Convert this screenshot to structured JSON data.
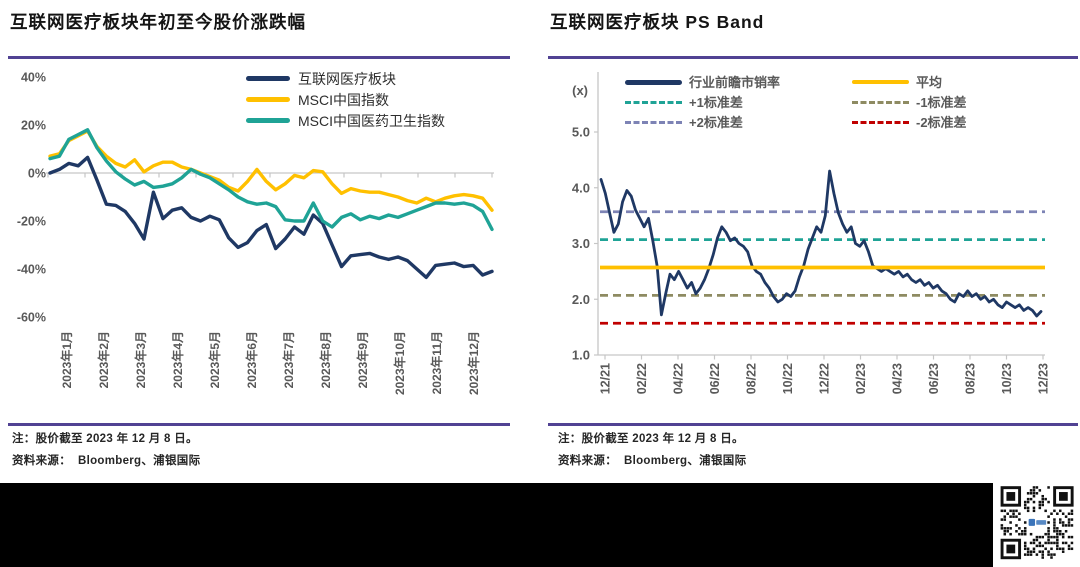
{
  "colors": {
    "navy": "#1F3864",
    "yellow": "#FFC000",
    "teal": "#1FA396",
    "slate": "#7D83B5",
    "olive": "#8E8B62",
    "red": "#C00000",
    "rule": "#514293",
    "axis": "#C6C6C6",
    "tick_label": "#595959",
    "qr_dark": "#111111",
    "qr_logo_blue": "#3B74BA"
  },
  "charts": [
    {
      "title": "互联网医疗板块年初至今股价涨跌幅",
      "note": "注：股价截至 2023 年 12 月 8 日。",
      "source": "资料来源：  Bloomberg、浦银国际",
      "chart_data": {
        "type": "line",
        "title": "互联网医疗板块年初至今股价涨跌幅",
        "unit": "%",
        "categories": [
          "2023年1月",
          "2023年2月",
          "2023年3月",
          "2023年4月",
          "2023年5月",
          "2023年6月",
          "2023年7月",
          "2023年8月",
          "2023年9月",
          "2023年10月",
          "2023年11月",
          "2023年12月"
        ],
        "ylim": [
          -60,
          40
        ],
        "yticks": [
          40,
          20,
          0,
          -20,
          -40,
          -60
        ],
        "ytick_labels": [
          "40%",
          "20%",
          "0%",
          "-20%",
          "-40%",
          "-60%"
        ],
        "grid": false,
        "legend_position": "top-right",
        "series": [
          {
            "name": "互联网医疗板块",
            "color_key": "navy",
            "values": [
              0,
              1.5,
              4,
              3,
              6.5,
              -3,
              -13,
              -13.5,
              -16,
              -21,
              -27.5,
              -8,
              -19,
              -15.5,
              -14.5,
              -18.5,
              -20,
              -18,
              -19.5,
              -27,
              -31,
              -29,
              -24,
              -21.5,
              -31.5,
              -27.5,
              -22.5,
              -25.5,
              -17.5,
              -21,
              -30,
              -39,
              -34.5,
              -34,
              -33.5,
              -35,
              -36,
              -35,
              -36.5,
              -40,
              -43.5,
              -38.5,
              -38,
              -37.5,
              -39,
              -38.5,
              -42.5,
              -41
            ]
          },
          {
            "name": "MSCI中国指数",
            "color_key": "yellow",
            "values": [
              7,
              8,
              13.5,
              15.5,
              17.5,
              11,
              7,
              4,
              2.5,
              5.5,
              0.5,
              3,
              4.5,
              4.5,
              2.5,
              1.5,
              0,
              -1.5,
              -3,
              -6,
              -7.5,
              -3.5,
              1.5,
              -3.5,
              -7,
              -4.5,
              -1,
              -2,
              1,
              0.5,
              -4.5,
              -8.5,
              -6.5,
              -7.5,
              -8,
              -8,
              -9,
              -10,
              -11.5,
              -12.5,
              -10.5,
              -12,
              -10.5,
              -9.5,
              -9,
              -9.5,
              -10.5,
              -15.5
            ]
          },
          {
            "name": "MSCI中国医药卫生指数",
            "color_key": "teal",
            "values": [
              6,
              7,
              14,
              16,
              18,
              10.5,
              5,
              0.5,
              -2.5,
              -5,
              -3.5,
              -6,
              -5.5,
              -4.5,
              -2,
              1.5,
              -0.5,
              -2,
              -4.5,
              -7,
              -10,
              -12,
              -13,
              -12.5,
              -14,
              -19.5,
              -20,
              -20,
              -12.5,
              -20,
              -22.5,
              -18.5,
              -17,
              -19.5,
              -18,
              -19,
              -17.5,
              -18.5,
              -17,
              -15.5,
              -14,
              -12.5,
              -12.5,
              -13,
              -12.5,
              -13.5,
              -16,
              -23.5
            ]
          }
        ]
      }
    },
    {
      "title": "互联网医疗板块 PS Band",
      "note": "注：股价截至 2023 年 12 月 8 日。",
      "source": "资料来源：  Bloomberg、浦银国际",
      "chart_data": {
        "type": "line",
        "title": "互联网医疗板块 PS Band",
        "unit_label": "(x)",
        "x_labels": [
          "12/21",
          "02/22",
          "04/22",
          "06/22",
          "08/22",
          "10/22",
          "12/22",
          "02/23",
          "04/23",
          "06/23",
          "08/23",
          "10/23",
          "12/23"
        ],
        "ylim": [
          1.0,
          5.0
        ],
        "yticks": [
          5.0,
          4.0,
          3.0,
          2.0,
          1.0
        ],
        "ytick_labels": [
          "5.0",
          "4.0",
          "3.0",
          "2.0",
          "1.0"
        ],
        "grid": false,
        "legend_position": "top",
        "series": [
          {
            "name": "行业前瞻市销率",
            "color_key": "navy",
            "style": "solid",
            "values": [
              4.15,
              3.9,
              3.55,
              3.2,
              3.35,
              3.75,
              3.95,
              3.85,
              3.6,
              3.45,
              3.3,
              3.45,
              3.05,
              2.6,
              1.72,
              2.1,
              2.45,
              2.35,
              2.5,
              2.35,
              2.2,
              2.3,
              2.1,
              2.2,
              2.35,
              2.55,
              2.8,
              3.1,
              3.3,
              3.2,
              3.05,
              3.1,
              3.0,
              2.95,
              2.85,
              2.6,
              2.5,
              2.45,
              2.3,
              2.2,
              2.05,
              1.95,
              2.0,
              2.1,
              2.05,
              2.15,
              2.4,
              2.6,
              2.9,
              3.1,
              3.3,
              3.2,
              3.5,
              4.3,
              3.9,
              3.55,
              3.35,
              3.2,
              3.3,
              3.0,
              2.95,
              3.05,
              2.85,
              2.6,
              2.55,
              2.5,
              2.55,
              2.5,
              2.45,
              2.5,
              2.4,
              2.45,
              2.35,
              2.3,
              2.35,
              2.25,
              2.3,
              2.2,
              2.25,
              2.15,
              2.1,
              2.0,
              1.95,
              2.1,
              2.05,
              2.15,
              2.05,
              2.1,
              2.0,
              2.05,
              1.95,
              2.0,
              1.9,
              1.85,
              1.95,
              1.9,
              1.85,
              1.9,
              1.8,
              1.85,
              1.8,
              1.7,
              1.78
            ]
          }
        ],
        "ref_lines": [
          {
            "name": "平均",
            "value": 2.57,
            "color_key": "yellow",
            "style": "solid"
          },
          {
            "name": "+1标准差",
            "value": 3.07,
            "color_key": "teal",
            "style": "dashed"
          },
          {
            "name": "+2标准差",
            "value": 3.57,
            "color_key": "slate",
            "style": "dashed"
          },
          {
            "name": "-1标准差",
            "value": 2.07,
            "color_key": "olive",
            "style": "dashed"
          },
          {
            "name": "-2标准差",
            "value": 1.57,
            "color_key": "red",
            "style": "dashed"
          }
        ]
      }
    }
  ]
}
